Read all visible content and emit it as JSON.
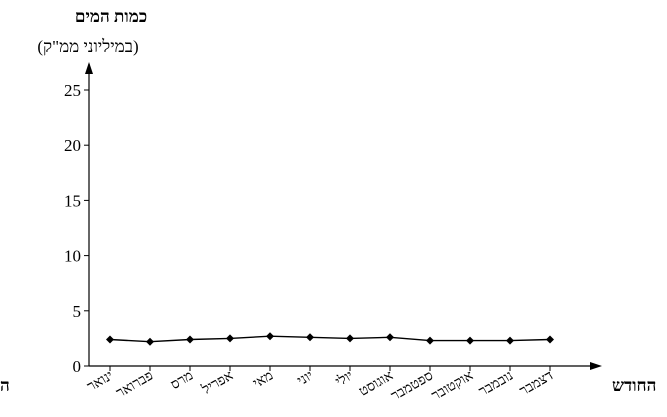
{
  "chart_data": {
    "type": "line",
    "ylabel_title": "כמות המים",
    "ylabel_units": "(במיליוני ממ\"ק)",
    "xlabel": "החודש",
    "x_edge_fragment": "ה",
    "ylim": [
      0,
      25
    ],
    "yticks": [
      0,
      5,
      10,
      15,
      20,
      25
    ],
    "grid": false,
    "categories": [
      "ינואר",
      "פברואר",
      "מרס",
      "אפריל",
      "מאי",
      "יוני",
      "יולי",
      "אוגוסט",
      "ספטמבר",
      "אוקטובר",
      "נובמבר",
      "דצמבר"
    ],
    "series": [
      {
        "values": [
          2.4,
          2.2,
          2.4,
          2.5,
          2.7,
          2.6,
          2.5,
          2.6,
          2.3,
          2.3,
          2.3,
          2.4
        ]
      }
    ],
    "colors": {
      "line": "#000000"
    }
  }
}
